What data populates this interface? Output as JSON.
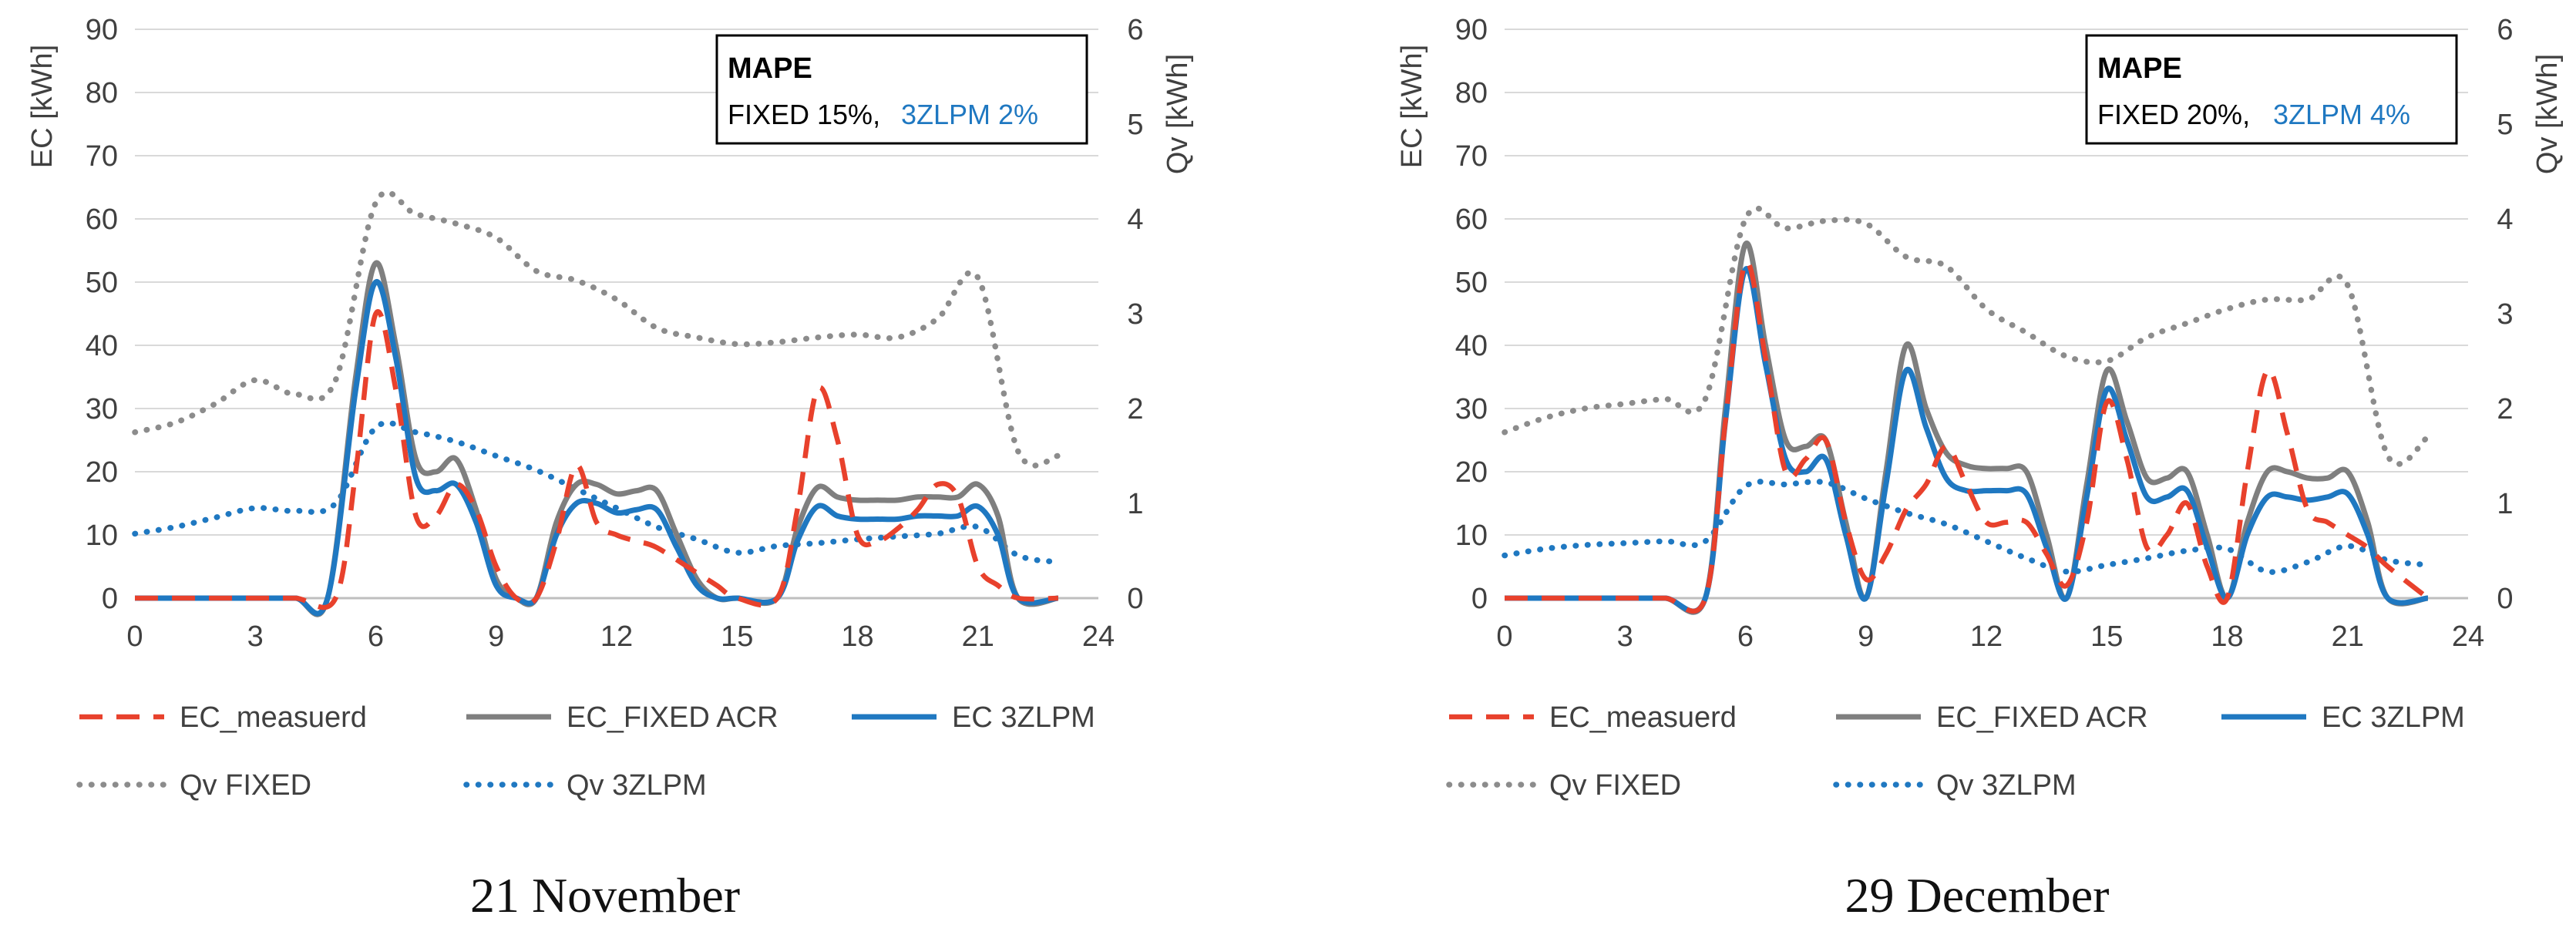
{
  "chart_data": [
    {
      "type": "line",
      "caption": "21 November",
      "xlabel": "",
      "ylabel_left": "EC [kWh]",
      "ylabel_right": "Qv [kWh]",
      "xlim": [
        0,
        24
      ],
      "ylim_left": [
        0,
        90
      ],
      "ylim_right": [
        0,
        6
      ],
      "xticks": [
        0,
        3,
        6,
        9,
        12,
        15,
        18,
        21,
        24
      ],
      "yticks_left": [
        0,
        10,
        20,
        30,
        40,
        50,
        60,
        70,
        80,
        90
      ],
      "yticks_right": [
        0,
        1,
        2,
        3,
        4,
        5,
        6
      ],
      "gridlines": true,
      "annotation": {
        "title": "MAPE",
        "fixed_text": "FIXED 15%,",
        "zlpm_text": "3ZLPM 2%"
      },
      "series": [
        {
          "name": "EC_measuerd",
          "axis": "left",
          "color": "#E8412C",
          "dash": "dashed",
          "x": [
            0,
            1,
            2,
            3,
            4,
            5,
            5.5,
            6,
            6.5,
            7,
            7.5,
            8,
            8.5,
            9,
            9.5,
            10,
            10.5,
            11,
            11.5,
            12,
            12.5,
            13,
            14,
            14.5,
            15,
            16,
            16.5,
            17,
            17.5,
            18,
            18.5,
            19,
            19.5,
            20,
            20.5,
            21,
            21.5,
            22,
            23
          ],
          "y": [
            0,
            0,
            0,
            0,
            0,
            0,
            20,
            45,
            33,
            13,
            13,
            18,
            14,
            5,
            0,
            0,
            9,
            21,
            12,
            10,
            9,
            8,
            4,
            2,
            0,
            0,
            14,
            33,
            25,
            10,
            9,
            11,
            14,
            18,
            16,
            5,
            2,
            0,
            0
          ]
        },
        {
          "name": "EC_FIXED ACR",
          "axis": "left",
          "color": "#7F7F7F",
          "dash": "solid",
          "x": [
            0,
            1,
            2,
            3,
            4,
            4.8,
            5.5,
            6,
            6.5,
            7,
            7.5,
            8,
            8.5,
            9,
            9.5,
            10,
            10.5,
            11,
            11.5,
            12,
            12.5,
            13,
            13.5,
            14,
            14.5,
            15,
            16,
            16.5,
            17,
            17.5,
            18,
            18.5,
            19,
            19.5,
            20,
            20.5,
            21,
            21.5,
            22,
            23
          ],
          "y": [
            0,
            0,
            0,
            0,
            0,
            0,
            35,
            53,
            40,
            22,
            20,
            22,
            14,
            3,
            0,
            0,
            12,
            18,
            18,
            16.5,
            17,
            17,
            10,
            3,
            0,
            0,
            0,
            11,
            17.5,
            16,
            15.5,
            15.5,
            15.5,
            16,
            16,
            16,
            18,
            13,
            0,
            0
          ]
        },
        {
          "name": "EC 3ZLPM",
          "axis": "left",
          "color": "#1F78C1",
          "dash": "solid",
          "x": [
            0,
            1,
            2,
            3,
            4,
            4.8,
            5.5,
            6,
            6.5,
            7,
            7.5,
            8,
            8.5,
            9,
            9.5,
            10,
            10.5,
            11,
            11.5,
            12,
            12.5,
            13,
            13.5,
            14,
            14.5,
            15,
            16,
            16.5,
            17,
            17.5,
            18,
            18.5,
            19,
            19.5,
            20,
            20.5,
            21,
            21.5,
            22,
            23
          ],
          "y": [
            0,
            0,
            0,
            0,
            0,
            0,
            33,
            50,
            38,
            19,
            17,
            18,
            12,
            2,
            0,
            0,
            10,
            15,
            15,
            13.5,
            14,
            14,
            8,
            2,
            0,
            0,
            0,
            9,
            14.5,
            13,
            12.5,
            12.5,
            12.5,
            13,
            13,
            13,
            14.5,
            10,
            0,
            0
          ]
        },
        {
          "name": "Qv FIXED",
          "axis": "right",
          "color": "#8C8C8C",
          "dash": "dotted",
          "x": [
            0,
            1,
            2,
            3,
            4,
            5,
            6,
            7,
            8,
            9,
            10,
            11,
            12,
            13,
            14,
            15,
            16,
            17,
            18,
            19,
            20,
            21,
            22,
            23
          ],
          "y": [
            1.75,
            1.85,
            2.05,
            2.3,
            2.15,
            2.3,
            4.17,
            4.05,
            3.95,
            3.8,
            3.45,
            3.35,
            3.15,
            2.85,
            2.75,
            2.68,
            2.7,
            2.75,
            2.78,
            2.75,
            2.95,
            3.38,
            1.55,
            1.5
          ]
        },
        {
          "name": "Qv 3ZLPM",
          "axis": "right",
          "color": "#1F78C1",
          "dash": "dotted",
          "x": [
            0,
            1,
            2,
            3,
            4,
            5,
            6,
            7,
            8,
            9,
            10,
            11,
            12,
            13,
            14,
            15,
            16,
            17,
            18,
            19,
            20,
            21,
            22,
            23
          ],
          "y": [
            0.68,
            0.75,
            0.85,
            0.95,
            0.92,
            1.0,
            1.8,
            1.75,
            1.65,
            1.5,
            1.35,
            1.15,
            0.95,
            0.75,
            0.62,
            0.48,
            0.55,
            0.58,
            0.62,
            0.65,
            0.68,
            0.75,
            0.45,
            0.38
          ]
        }
      ]
    },
    {
      "type": "line",
      "caption": "29 December",
      "xlabel": "",
      "ylabel_left": "EC [kWh]",
      "ylabel_right": "Qv [kWh]",
      "xlim": [
        0,
        24
      ],
      "ylim_left": [
        0,
        90
      ],
      "ylim_right": [
        0,
        6
      ],
      "xticks": [
        0,
        3,
        6,
        9,
        12,
        15,
        18,
        21,
        24
      ],
      "yticks_left": [
        0,
        10,
        20,
        30,
        40,
        50,
        60,
        70,
        80,
        90
      ],
      "yticks_right": [
        0,
        1,
        2,
        3,
        4,
        5,
        6
      ],
      "gridlines": true,
      "annotation": {
        "title": "MAPE",
        "fixed_text": "FIXED 20%,",
        "zlpm_text": "3ZLPM 4%"
      },
      "series": [
        {
          "name": "EC_measuerd",
          "axis": "left",
          "color": "#E8412C",
          "dash": "dashed",
          "x": [
            0,
            1,
            2,
            3,
            4,
            5,
            5.5,
            6,
            6.5,
            7,
            7.5,
            8,
            8.5,
            9,
            9.5,
            10,
            10.5,
            11,
            11.5,
            12,
            12.5,
            13,
            13.5,
            14,
            14.5,
            15,
            15.5,
            16,
            16.5,
            17,
            17.5,
            18,
            18.5,
            19,
            19.5,
            20,
            20.5,
            21,
            21.5,
            22,
            23
          ],
          "y": [
            0,
            0,
            0,
            0,
            0,
            0,
            28,
            53,
            38,
            20,
            22,
            25,
            12,
            3,
            7,
            14,
            18,
            24,
            18,
            12,
            12,
            12,
            7,
            2,
            12,
            31,
            22,
            8,
            10,
            15,
            5,
            0,
            20,
            36,
            26,
            14,
            12,
            10,
            8,
            5,
            0
          ]
        },
        {
          "name": "EC_FIXED ACR",
          "axis": "left",
          "color": "#7F7F7F",
          "dash": "solid",
          "x": [
            0,
            1,
            2,
            3,
            4,
            5,
            5.5,
            6,
            6.5,
            7,
            7.5,
            8,
            8.5,
            9,
            9.5,
            10,
            10.5,
            11,
            11.5,
            12,
            12.5,
            13,
            13.5,
            14,
            14.5,
            15,
            15.5,
            16,
            16.5,
            17,
            17.5,
            18,
            18.5,
            19,
            19.5,
            20,
            20.5,
            21,
            21.5,
            22,
            23
          ],
          "y": [
            0,
            0,
            0,
            0,
            0,
            0,
            30,
            56,
            40,
            25,
            24,
            25,
            12,
            0,
            20,
            40,
            30,
            23,
            21,
            20.5,
            20.5,
            20,
            10,
            0,
            18,
            36,
            28,
            19,
            19,
            20,
            10,
            0,
            12,
            20,
            20,
            19,
            19,
            20,
            12,
            0,
            0
          ]
        },
        {
          "name": "EC 3ZLPM",
          "axis": "left",
          "color": "#1F78C1",
          "dash": "solid",
          "x": [
            0,
            1,
            2,
            3,
            4,
            5,
            5.5,
            6,
            6.5,
            7,
            7.5,
            8,
            8.5,
            9,
            9.5,
            10,
            10.5,
            11,
            11.5,
            12,
            12.5,
            13,
            13.5,
            14,
            14.5,
            15,
            15.5,
            16,
            16.5,
            17,
            17.5,
            18,
            18.5,
            19,
            19.5,
            20,
            20.5,
            21,
            21.5,
            22,
            23
          ],
          "y": [
            0,
            0,
            0,
            0,
            0,
            0,
            28,
            52,
            37,
            22,
            20,
            22,
            10,
            0,
            18,
            36,
            27,
            19,
            17,
            17,
            17,
            16.5,
            8,
            0,
            16,
            33,
            25,
            16,
            16,
            17,
            8,
            0,
            10,
            16,
            16,
            15.5,
            16,
            16.5,
            10,
            0,
            0
          ]
        },
        {
          "name": "Qv FIXED",
          "axis": "right",
          "color": "#8C8C8C",
          "dash": "dotted",
          "x": [
            0,
            1,
            2,
            3,
            4,
            5,
            6,
            7,
            8,
            9,
            10,
            11,
            12,
            13,
            14,
            15,
            16,
            17,
            18,
            19,
            20,
            21,
            22,
            23
          ],
          "y": [
            1.75,
            1.9,
            2.0,
            2.05,
            2.1,
            2.1,
            4.0,
            3.9,
            3.98,
            3.95,
            3.6,
            3.5,
            3.05,
            2.8,
            2.55,
            2.5,
            2.75,
            2.9,
            3.05,
            3.15,
            3.15,
            3.3,
            1.5,
            1.7
          ]
        },
        {
          "name": "Qv 3ZLPM",
          "axis": "right",
          "color": "#1F78C1",
          "dash": "dotted",
          "x": [
            0,
            1,
            2,
            3,
            4,
            5,
            6,
            7,
            8,
            9,
            10,
            11,
            12,
            13,
            14,
            15,
            16,
            17,
            18,
            19,
            20,
            21,
            22,
            23
          ],
          "y": [
            0.45,
            0.52,
            0.56,
            0.58,
            0.6,
            0.6,
            1.18,
            1.2,
            1.22,
            1.05,
            0.9,
            0.78,
            0.6,
            0.42,
            0.28,
            0.35,
            0.42,
            0.5,
            0.52,
            0.28,
            0.38,
            0.55,
            0.4,
            0.35
          ]
        }
      ]
    }
  ],
  "legend": {
    "ec_measured": "EC_measuerd",
    "ec_fixed": "EC_FIXED ACR",
    "ec_3zlpm": "EC 3ZLPM",
    "qv_fixed": "Qv FIXED",
    "qv_3zlpm": "Qv 3ZLPM"
  },
  "captions": {
    "left": "21 November",
    "right": "29 December"
  }
}
